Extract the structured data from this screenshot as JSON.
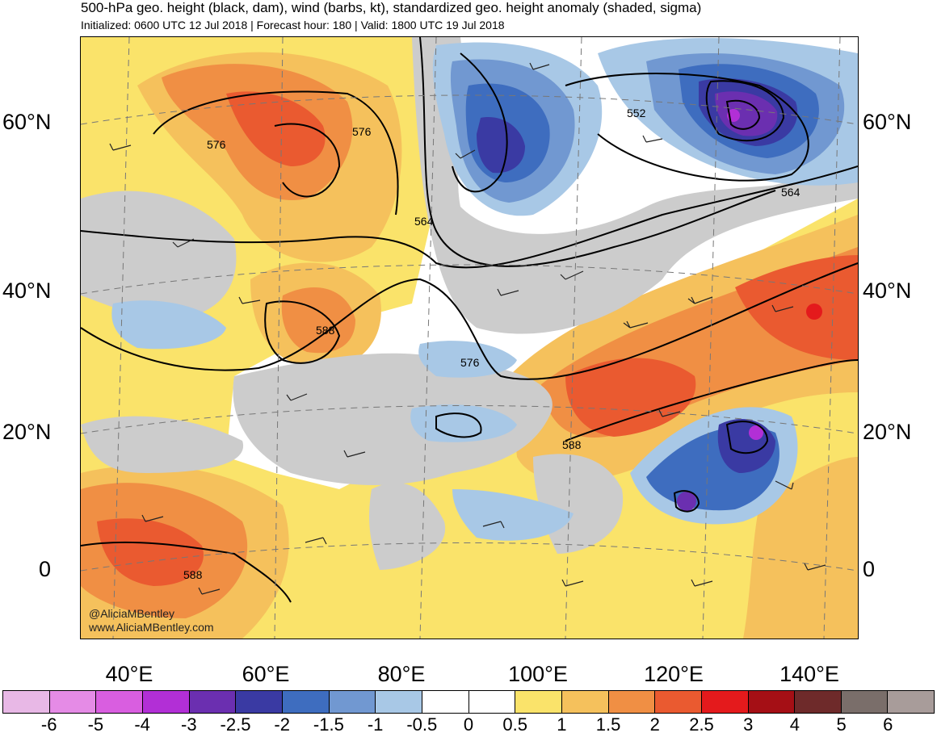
{
  "title": {
    "line1": "500-hPa geo. height (black, dam), wind (barbs, kt), standardized geo. height anomaly (shaded, sigma)",
    "line2": "Initialized: 0600 UTC 12 Jul 2018 | Forecast hour: 180 | Valid: 1800 UTC 19 Jul 2018"
  },
  "axes": {
    "lat_labels": [
      "60°N",
      "40°N",
      "20°N",
      "0"
    ],
    "lon_labels": [
      "40°E",
      "60°E",
      "80°E",
      "100°E",
      "120°E",
      "140°E"
    ]
  },
  "contour_labels": [
    "576",
    "576",
    "552",
    "564",
    "564",
    "588",
    "576",
    "588",
    "588"
  ],
  "credit": {
    "handle": "@AliciaMBentley",
    "site": "www.AliciaMBentley.com"
  },
  "colorbar": {
    "labels": [
      "-6",
      "-5",
      "-4",
      "-3",
      "-2.5",
      "-2",
      "-1.5",
      "-1",
      "-0.5",
      "0",
      "0.5",
      "1",
      "1.5",
      "2",
      "2.5",
      "3",
      "4",
      "5",
      "6"
    ],
    "colors": [
      "#e8b8e6",
      "#e58be6",
      "#d95ee0",
      "#b22fd6",
      "#6b2fb0",
      "#3a3aa3",
      "#3e6dbf",
      "#7198d1",
      "#a8c8e6",
      "#ffffff",
      "#ffffff",
      "#fae36a",
      "#f5c15c",
      "#f08f44",
      "#ea5a30",
      "#e41a1c",
      "#a50f15",
      "#6e2a2a",
      "#7a6e6a",
      "#a89c9a"
    ]
  }
}
